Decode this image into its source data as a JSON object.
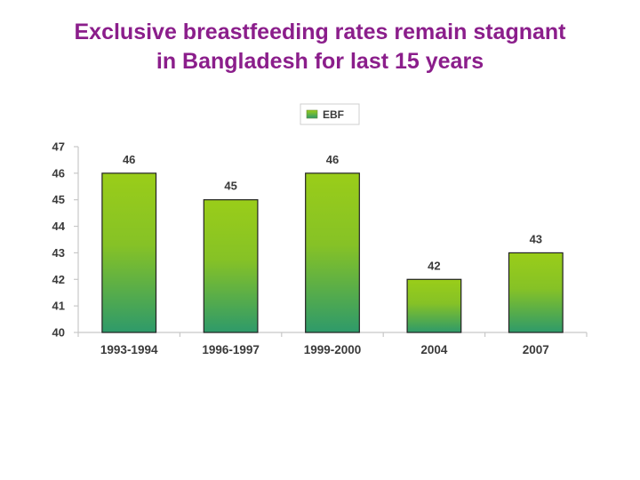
{
  "title": {
    "line1": "Exclusive breastfeeding rates remain stagnant",
    "line2": "in Bangladesh for last 15 years"
  },
  "colors": {
    "title": "#8b1e8b",
    "bar_top": "#9acd19",
    "bar_bottom": "#2e9a6a",
    "axis": "#c8c8c8",
    "text": "#3a3a3a"
  },
  "chart_data": {
    "type": "bar",
    "title": "Exclusive breastfeeding rates remain stagnant in Bangladesh for last 15 years",
    "xlabel": "",
    "ylabel": "",
    "categories": [
      "1993-1994",
      "1996-1997",
      "1999-2000",
      "2004",
      "2007"
    ],
    "series": [
      {
        "name": "EBF",
        "values": [
          46,
          45,
          46,
          42,
          43
        ]
      }
    ],
    "ylim": [
      40,
      47
    ],
    "yticks": [
      40,
      41,
      42,
      43,
      44,
      45,
      46,
      47
    ],
    "legend": "top-center",
    "grid": false,
    "data_labels": true
  }
}
